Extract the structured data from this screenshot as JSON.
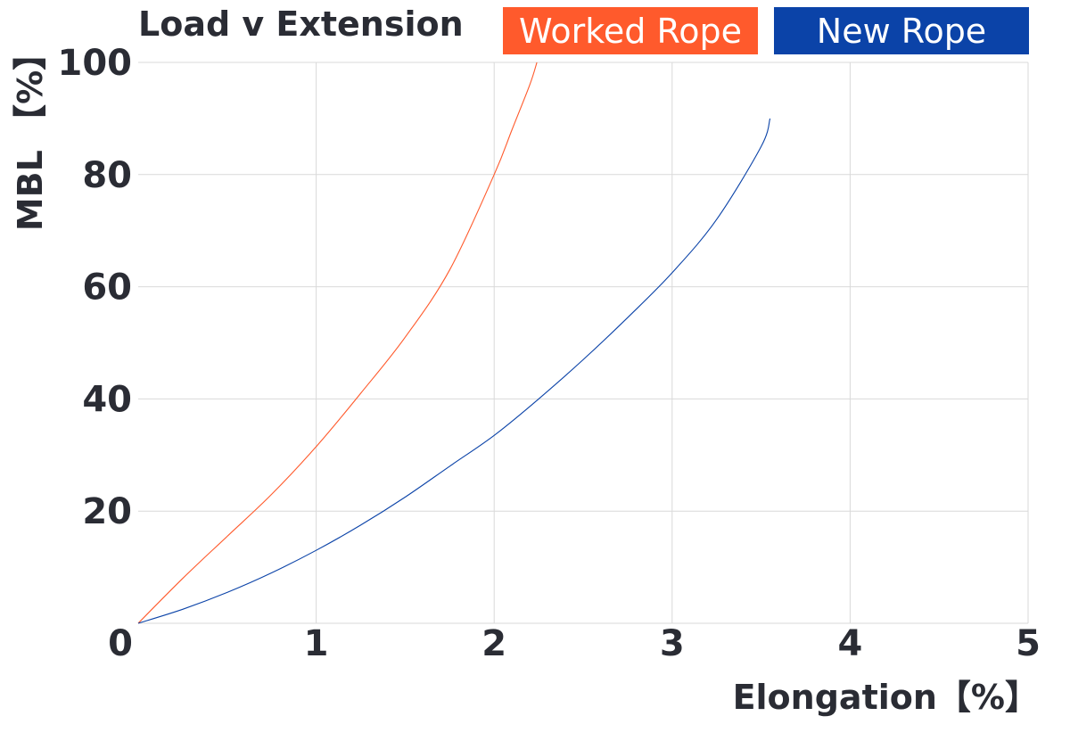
{
  "chart_data": {
    "type": "line",
    "title": "Load v Extension",
    "xlabel": "Elongation【%】",
    "ylabel": "MBL 【%】",
    "xlim": [
      0,
      5
    ],
    "ylim": [
      0,
      100
    ],
    "x_ticks": [
      "0",
      "1",
      "2",
      "3",
      "4",
      "5"
    ],
    "y_ticks": [
      "20",
      "40",
      "60",
      "80",
      "100"
    ],
    "grid": true,
    "legend_position": "top-right",
    "series": [
      {
        "name": "Worked Rope",
        "color": "#ff5a2c",
        "x": [
          0,
          0.25,
          0.5,
          0.75,
          1.0,
          1.25,
          1.5,
          1.75,
          2.0,
          2.1,
          2.2,
          2.24
        ],
        "y": [
          0,
          8,
          15.5,
          23,
          31.5,
          41,
          51,
          63,
          80,
          88,
          96,
          100
        ]
      },
      {
        "name": "New Rope",
        "color": "#0b43a8",
        "x": [
          0,
          0.25,
          0.5,
          0.75,
          1.0,
          1.25,
          1.5,
          1.75,
          2.0,
          2.25,
          2.5,
          2.75,
          3.0,
          3.25,
          3.5,
          3.55
        ],
        "y": [
          0,
          2.5,
          5.5,
          9,
          13,
          17.5,
          22.5,
          28,
          33.5,
          40,
          47,
          54.5,
          62.5,
          72,
          85,
          90
        ]
      }
    ]
  }
}
